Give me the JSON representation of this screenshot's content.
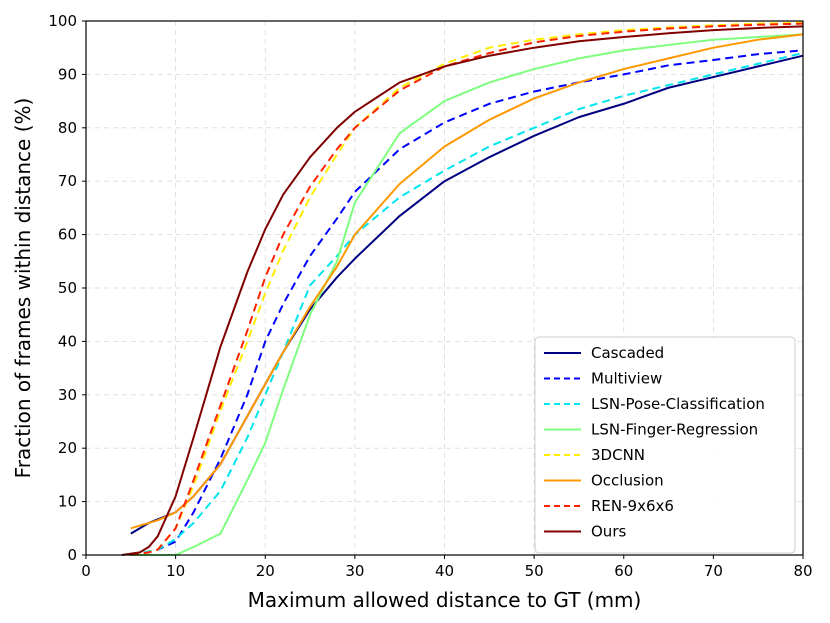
{
  "chart_data": {
    "type": "line",
    "title": "",
    "xlabel": "Maximum allowed distance to GT (mm)",
    "ylabel": "Fraction of frames within distance (%)",
    "xlim": [
      0,
      80
    ],
    "ylim": [
      0,
      100
    ],
    "xticks": [
      0,
      10,
      20,
      30,
      40,
      50,
      60,
      70,
      80
    ],
    "yticks": [
      0,
      10,
      20,
      30,
      40,
      50,
      60,
      70,
      80,
      90,
      100
    ],
    "grid": true,
    "legend_position": "bottom-right",
    "series": [
      {
        "name": "Cascaded",
        "color": "#000080",
        "dash": "solid",
        "x": [
          5,
          7,
          10,
          12,
          15,
          18,
          20,
          22,
          25,
          28,
          30,
          35,
          40,
          45,
          50,
          55,
          60,
          65,
          70,
          75,
          80
        ],
        "y": [
          4,
          6,
          8,
          11,
          17,
          26,
          32,
          38,
          46,
          52,
          55.5,
          63.5,
          70,
          74.5,
          78.5,
          82,
          84.5,
          87.5,
          89.5,
          91.5,
          93.5
        ]
      },
      {
        "name": "Multiview",
        "color": "#0000ff",
        "dash": "dashed",
        "x": [
          5,
          7,
          8,
          10,
          12,
          15,
          18,
          20,
          22,
          25,
          28,
          30,
          35,
          40,
          45,
          50,
          55,
          60,
          65,
          70,
          75,
          80
        ],
        "y": [
          0,
          0.5,
          1,
          2.5,
          8,
          18,
          30,
          40,
          47,
          56,
          63,
          68,
          76,
          81,
          84.5,
          86.8,
          88.5,
          90,
          91.7,
          92.7,
          93.8,
          94.5
        ]
      },
      {
        "name": "LSN-Pose-Classification",
        "color": "#00e5ee",
        "dash": "dashed",
        "x": [
          5,
          8,
          10,
          12,
          15,
          18,
          20,
          22,
          25,
          28,
          30,
          35,
          40,
          45,
          50,
          55,
          60,
          65,
          70,
          75,
          80
        ],
        "y": [
          0,
          1,
          3,
          6,
          12,
          22,
          30,
          38,
          50.5,
          56,
          60,
          67,
          72,
          76.5,
          80,
          83.5,
          86,
          88,
          90,
          92,
          94
        ]
      },
      {
        "name": "LSN-Finger-Regression",
        "color": "#7fff7f",
        "dash": "solid",
        "x": [
          5,
          10,
          12,
          15,
          18,
          20,
          22,
          25,
          28,
          30,
          35,
          40,
          45,
          50,
          55,
          60,
          65,
          70,
          75,
          80
        ],
        "y": [
          0,
          0,
          1.5,
          4,
          14,
          21,
          31,
          45,
          55,
          66,
          79,
          85,
          88.5,
          91,
          93,
          94.5,
          95.5,
          96.5,
          97,
          97.5
        ]
      },
      {
        "name": "3DCNN",
        "color": "#ffee00",
        "dash": "dashed",
        "x": [
          5,
          7,
          8,
          10,
          12,
          15,
          18,
          20,
          22,
          25,
          28,
          30,
          35,
          40,
          45,
          50,
          55,
          60,
          65,
          70,
          75,
          80
        ],
        "y": [
          0,
          0.5,
          1,
          5,
          13,
          27,
          40,
          49,
          57,
          67,
          75,
          80,
          87.5,
          92,
          95,
          96.5,
          97.5,
          98.3,
          98.8,
          99.2,
          99.5,
          99.7
        ]
      },
      {
        "name": "Occlusion",
        "color": "#ff9900",
        "dash": "solid",
        "x": [
          5,
          8,
          10,
          12,
          15,
          18,
          20,
          22,
          25,
          28,
          30,
          35,
          40,
          45,
          50,
          55,
          60,
          65,
          70,
          75,
          80
        ],
        "y": [
          5,
          6.5,
          8,
          11,
          17,
          26,
          32,
          38,
          46.5,
          54,
          60,
          69.5,
          76.5,
          81.5,
          85.5,
          88.5,
          91,
          93,
          95,
          96.5,
          97.5
        ]
      },
      {
        "name": "REN-9x6x6",
        "color": "#ff2200",
        "dash": "dashed",
        "x": [
          5,
          7,
          8,
          10,
          12,
          15,
          18,
          20,
          22,
          25,
          28,
          30,
          35,
          40,
          45,
          50,
          55,
          60,
          65,
          70,
          75,
          80
        ],
        "y": [
          0,
          0.5,
          1,
          5,
          14,
          28,
          42,
          52,
          60,
          69,
          76,
          80,
          87,
          91.5,
          94,
          96,
          97.2,
          98,
          98.6,
          99,
          99.3,
          99.5
        ]
      },
      {
        "name": "Ours",
        "color": "#800000",
        "dash": "solid",
        "x": [
          4,
          6,
          7,
          8,
          10,
          12,
          15,
          18,
          20,
          22,
          25,
          28,
          30,
          35,
          40,
          45,
          50,
          55,
          60,
          65,
          70,
          75,
          80
        ],
        "y": [
          0,
          0.5,
          1.5,
          3.5,
          11,
          22,
          39,
          53,
          61,
          67.5,
          74.5,
          80,
          83,
          88.5,
          91.5,
          93.5,
          95,
          96.2,
          97,
          97.7,
          98.3,
          98.7,
          99
        ]
      }
    ]
  }
}
